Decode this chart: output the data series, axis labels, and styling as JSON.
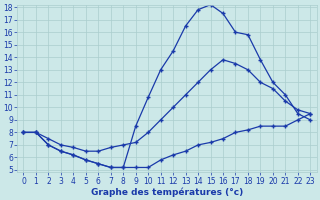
{
  "xlabel": "Graphe des températures (°c)",
  "background_color": "#cce8e8",
  "grid_color": "#aacece",
  "line_color": "#1a3aaa",
  "hours": [
    0,
    1,
    2,
    3,
    4,
    5,
    6,
    7,
    8,
    9,
    10,
    11,
    12,
    13,
    14,
    15,
    16,
    17,
    18,
    19,
    20,
    21,
    22,
    23
  ],
  "temp_max": [
    8.0,
    8.0,
    7.0,
    6.5,
    6.2,
    5.8,
    5.5,
    5.2,
    5.2,
    8.5,
    10.8,
    13.0,
    14.5,
    16.5,
    17.8,
    18.2,
    17.5,
    16.0,
    15.8,
    13.8,
    12.0,
    11.0,
    9.5,
    9.0
  ],
  "temp_min": [
    8.0,
    8.0,
    7.0,
    6.5,
    6.2,
    5.8,
    5.5,
    5.2,
    5.2,
    5.2,
    5.2,
    5.8,
    6.2,
    6.5,
    7.0,
    7.2,
    7.5,
    8.0,
    8.2,
    8.5,
    8.5,
    8.5,
    9.0,
    9.5
  ],
  "temp_avg": [
    8.0,
    8.0,
    7.5,
    7.0,
    6.8,
    6.5,
    6.5,
    6.8,
    7.0,
    7.2,
    8.0,
    9.0,
    10.0,
    11.0,
    12.0,
    13.0,
    13.8,
    13.5,
    13.0,
    12.0,
    11.5,
    10.5,
    9.8,
    9.5
  ],
  "ylim_min": 5,
  "ylim_max": 18,
  "xlim_min": 0,
  "xlim_max": 23,
  "yticks": [
    5,
    6,
    7,
    8,
    9,
    10,
    11,
    12,
    13,
    14,
    15,
    16,
    17,
    18
  ],
  "xticks": [
    0,
    1,
    2,
    3,
    4,
    5,
    6,
    7,
    8,
    9,
    10,
    11,
    12,
    13,
    14,
    15,
    16,
    17,
    18,
    19,
    20,
    21,
    22,
    23
  ],
  "marker": "+",
  "markersize": 3.5,
  "linewidth": 0.9,
  "tick_labelsize": 5.5,
  "xlabel_fontsize": 6.5
}
